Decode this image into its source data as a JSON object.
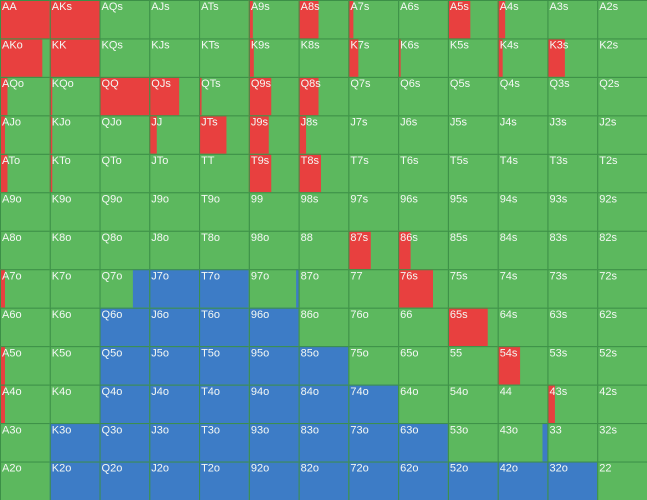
{
  "grid": {
    "colors": {
      "raise": "#e8403f",
      "call": "#5cb85e",
      "fold": "#3d7cc6"
    },
    "labels": [
      [
        "AA",
        "AKs",
        "AQs",
        "AJs",
        "ATs",
        "A9s",
        "A8s",
        "A7s",
        "A6s",
        "A5s",
        "A4s",
        "A3s",
        "A2s"
      ],
      [
        "AKo",
        "KK",
        "KQs",
        "KJs",
        "KTs",
        "K9s",
        "K8s",
        "K7s",
        "K6s",
        "K5s",
        "K4s",
        "K3s",
        "K2s"
      ],
      [
        "AQo",
        "KQo",
        "QQ",
        "QJs",
        "QTs",
        "Q9s",
        "Q8s",
        "Q7s",
        "Q6s",
        "Q5s",
        "Q4s",
        "Q3s",
        "Q2s"
      ],
      [
        "AJo",
        "KJo",
        "QJo",
        "JJ",
        "JTs",
        "J9s",
        "J8s",
        "J7s",
        "J6s",
        "J5s",
        "J4s",
        "J3s",
        "J2s"
      ],
      [
        "ATo",
        "KTo",
        "QTo",
        "JTo",
        "TT",
        "T9s",
        "T8s",
        "T7s",
        "T6s",
        "T5s",
        "T4s",
        "T3s",
        "T2s"
      ],
      [
        "A9o",
        "K9o",
        "Q9o",
        "J9o",
        "T9o",
        "99",
        "98s",
        "97s",
        "96s",
        "95s",
        "94s",
        "93s",
        "92s"
      ],
      [
        "A8o",
        "K8o",
        "Q8o",
        "J8o",
        "T8o",
        "98o",
        "88",
        "87s",
        "86s",
        "85s",
        "84s",
        "83s",
        "82s"
      ],
      [
        "A7o",
        "K7o",
        "Q7o",
        "J7o",
        "T7o",
        "97o",
        "87o",
        "77",
        "76s",
        "75s",
        "74s",
        "73s",
        "72s"
      ],
      [
        "A6o",
        "K6o",
        "Q6o",
        "J6o",
        "T6o",
        "96o",
        "86o",
        "76o",
        "66",
        "65s",
        "64s",
        "63s",
        "62s"
      ],
      [
        "A5o",
        "K5o",
        "Q5o",
        "J5o",
        "T5o",
        "95o",
        "85o",
        "75o",
        "65o",
        "55",
        "54s",
        "53s",
        "52s"
      ],
      [
        "A4o",
        "K4o",
        "Q4o",
        "J4o",
        "T4o",
        "94o",
        "84o",
        "74o",
        "64o",
        "54o",
        "44",
        "43s",
        "42s"
      ],
      [
        "A3o",
        "K3o",
        "Q3o",
        "J3o",
        "T3o",
        "93o",
        "83o",
        "73o",
        "63o",
        "53o",
        "43o",
        "33",
        "32s"
      ],
      [
        "A2o",
        "K2o",
        "Q2o",
        "J2o",
        "T2o",
        "92o",
        "82o",
        "72o",
        "62o",
        "52o",
        "42o",
        "32o",
        "22"
      ]
    ],
    "raise": [
      [
        100,
        100,
        0,
        0,
        0,
        8,
        40,
        10,
        0,
        45,
        15,
        0,
        0
      ],
      [
        85,
        100,
        0,
        0,
        0,
        10,
        0,
        20,
        5,
        0,
        10,
        35,
        0
      ],
      [
        15,
        5,
        100,
        60,
        5,
        45,
        40,
        0,
        0,
        0,
        0,
        0,
        0
      ],
      [
        10,
        5,
        0,
        15,
        55,
        40,
        15,
        0,
        0,
        0,
        0,
        0,
        0
      ],
      [
        15,
        5,
        0,
        0,
        0,
        45,
        45,
        0,
        0,
        0,
        0,
        0,
        0
      ],
      [
        0,
        0,
        0,
        0,
        0,
        0,
        0,
        0,
        0,
        0,
        0,
        0,
        0
      ],
      [
        0,
        0,
        0,
        0,
        0,
        0,
        0,
        45,
        25,
        0,
        0,
        0,
        0
      ],
      [
        10,
        0,
        0,
        0,
        0,
        0,
        0,
        0,
        70,
        0,
        0,
        0,
        0
      ],
      [
        0,
        0,
        0,
        0,
        0,
        0,
        0,
        0,
        0,
        80,
        0,
        0,
        0
      ],
      [
        10,
        0,
        0,
        0,
        0,
        0,
        0,
        0,
        0,
        0,
        45,
        0,
        0
      ],
      [
        10,
        0,
        0,
        0,
        0,
        0,
        0,
        0,
        0,
        0,
        0,
        15,
        0
      ],
      [
        0,
        0,
        0,
        0,
        0,
        0,
        0,
        0,
        0,
        0,
        0,
        0,
        0
      ],
      [
        0,
        0,
        0,
        0,
        0,
        0,
        0,
        0,
        0,
        0,
        0,
        0,
        0
      ]
    ],
    "fold": [
      [
        0,
        0,
        0,
        0,
        0,
        0,
        0,
        0,
        0,
        0,
        0,
        0,
        0
      ],
      [
        0,
        0,
        0,
        0,
        0,
        0,
        0,
        0,
        0,
        0,
        0,
        0,
        0
      ],
      [
        0,
        0,
        0,
        0,
        0,
        0,
        0,
        0,
        0,
        0,
        0,
        0,
        0
      ],
      [
        0,
        0,
        0,
        0,
        0,
        0,
        0,
        0,
        0,
        0,
        0,
        0,
        0
      ],
      [
        0,
        0,
        0,
        0,
        0,
        0,
        0,
        0,
        0,
        0,
        0,
        0,
        0
      ],
      [
        0,
        0,
        0,
        0,
        0,
        0,
        0,
        0,
        0,
        0,
        0,
        0,
        0
      ],
      [
        0,
        0,
        0,
        0,
        0,
        0,
        0,
        0,
        0,
        0,
        0,
        0,
        0
      ],
      [
        0,
        0,
        33,
        100,
        100,
        5,
        0,
        0,
        0,
        0,
        0,
        0,
        0
      ],
      [
        0,
        0,
        100,
        100,
        100,
        100,
        0,
        0,
        0,
        0,
        0,
        0,
        0
      ],
      [
        0,
        0,
        100,
        100,
        100,
        100,
        100,
        0,
        0,
        0,
        0,
        0,
        0
      ],
      [
        0,
        0,
        100,
        100,
        100,
        100,
        100,
        100,
        0,
        0,
        0,
        0,
        0
      ],
      [
        0,
        100,
        100,
        100,
        100,
        100,
        100,
        100,
        100,
        0,
        10,
        0,
        0
      ],
      [
        0,
        100,
        100,
        100,
        100,
        100,
        100,
        100,
        100,
        100,
        100,
        100,
        0
      ]
    ]
  }
}
